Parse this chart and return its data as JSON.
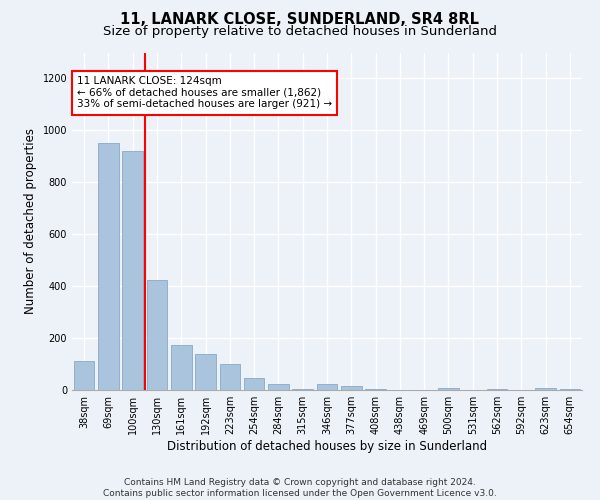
{
  "title": "11, LANARK CLOSE, SUNDERLAND, SR4 8RL",
  "subtitle": "Size of property relative to detached houses in Sunderland",
  "xlabel": "Distribution of detached houses by size in Sunderland",
  "ylabel": "Number of detached properties",
  "categories": [
    "38sqm",
    "69sqm",
    "100sqm",
    "130sqm",
    "161sqm",
    "192sqm",
    "223sqm",
    "254sqm",
    "284sqm",
    "315sqm",
    "346sqm",
    "377sqm",
    "408sqm",
    "438sqm",
    "469sqm",
    "500sqm",
    "531sqm",
    "562sqm",
    "592sqm",
    "623sqm",
    "654sqm"
  ],
  "values": [
    110,
    950,
    920,
    425,
    175,
    140,
    100,
    45,
    25,
    5,
    25,
    15,
    5,
    0,
    0,
    8,
    0,
    3,
    0,
    8,
    3
  ],
  "bar_color": "#aac4de",
  "bar_edge_color": "#7aa0c0",
  "red_line_index": 2,
  "annotation_text_line1": "11 LANARK CLOSE: 124sqm",
  "annotation_text_line2": "← 66% of detached houses are smaller (1,862)",
  "annotation_text_line3": "33% of semi-detached houses are larger (921) →",
  "annotation_box_color": "white",
  "annotation_box_edge": "red",
  "ylim": [
    0,
    1300
  ],
  "yticks": [
    0,
    200,
    400,
    600,
    800,
    1000,
    1200
  ],
  "footer_line1": "Contains HM Land Registry data © Crown copyright and database right 2024.",
  "footer_line2": "Contains public sector information licensed under the Open Government Licence v3.0.",
  "bg_color": "#edf2f8",
  "plot_bg_color": "#edf2f8",
  "grid_color": "white",
  "title_fontsize": 10.5,
  "subtitle_fontsize": 9.5,
  "tick_fontsize": 7,
  "label_fontsize": 8.5,
  "footer_fontsize": 6.5
}
